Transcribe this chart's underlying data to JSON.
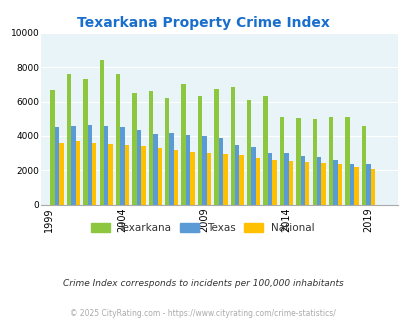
{
  "title": "Texarkana Property Crime Index",
  "title_color": "#1a6fcc",
  "years": [
    2000,
    2001,
    2002,
    2003,
    2004,
    2005,
    2006,
    2007,
    2008,
    2009,
    2010,
    2011,
    2012,
    2013,
    2014,
    2015,
    2016,
    2017,
    2018,
    2019,
    2020
  ],
  "xtick_labels": [
    "1999",
    "2004",
    "2009",
    "2014",
    "2019"
  ],
  "xtick_positions": [
    1999.5,
    2004,
    2009,
    2014,
    2019
  ],
  "texarkana": [
    6700,
    7600,
    7300,
    8400,
    7600,
    6500,
    6600,
    6200,
    7000,
    6300,
    6750,
    6850,
    6100,
    6350,
    5100,
    5050,
    5000,
    5100,
    5100,
    4600,
    0
  ],
  "texas": [
    4500,
    4600,
    4650,
    4600,
    4550,
    4350,
    4100,
    4150,
    4050,
    4020,
    3900,
    3500,
    3350,
    3030,
    3020,
    2850,
    2780,
    2620,
    2380,
    2370,
    0
  ],
  "national": [
    3600,
    3700,
    3600,
    3550,
    3500,
    3400,
    3300,
    3200,
    3050,
    3000,
    2950,
    2880,
    2700,
    2600,
    2550,
    2480,
    2440,
    2360,
    2200,
    2100,
    0
  ],
  "texarkana_color": "#8dc63f",
  "texas_color": "#5b9bd5",
  "national_color": "#ffc000",
  "bg_color": "#e8f4f8",
  "ylim": [
    0,
    10000
  ],
  "yticks": [
    0,
    2000,
    4000,
    6000,
    8000,
    10000
  ],
  "bar_width": 0.27,
  "footnote": "Crime Index corresponds to incidents per 100,000 inhabitants",
  "copyright": "© 2025 CityRating.com - https://www.cityrating.com/crime-statistics/",
  "legend_labels": [
    "Texarkana",
    "Texas",
    "National"
  ],
  "figsize": [
    4.06,
    3.3
  ],
  "dpi": 100
}
